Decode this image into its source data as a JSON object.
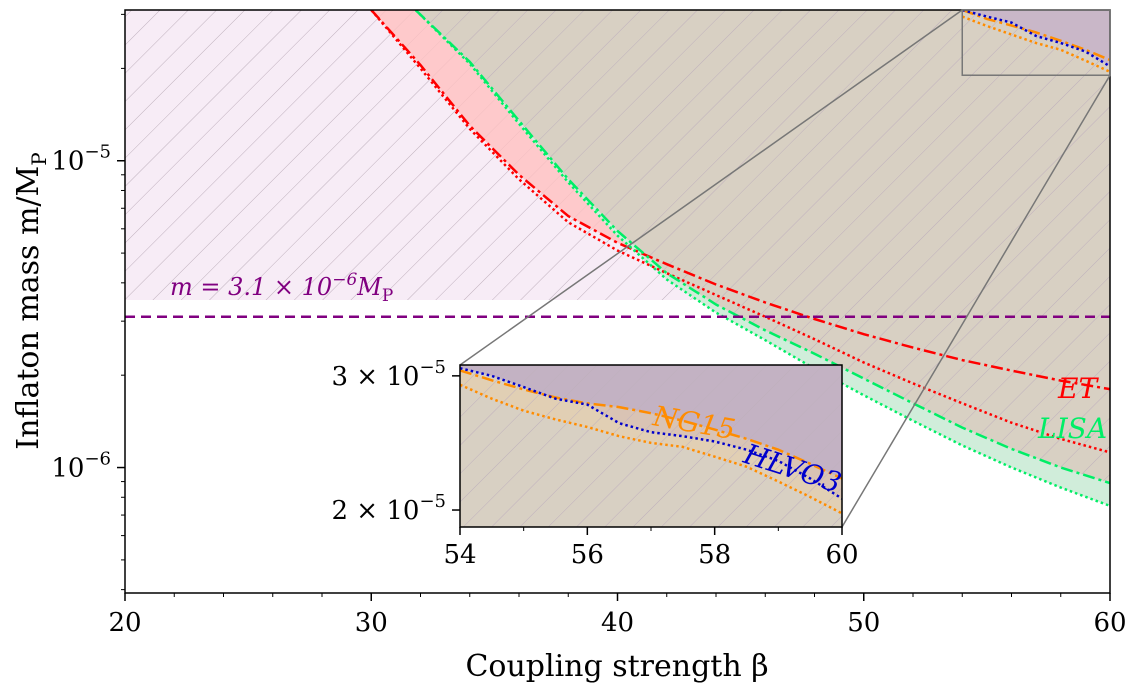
{
  "chart_data": {
    "type": "line",
    "main": {
      "xlabel": "Coupling strength  β",
      "ylabel": "Inflaton mass  m/M",
      "ylabel_sub": "P",
      "xlim": [
        20,
        60
      ],
      "ylim": [
        3.9e-07,
        3.1e-05
      ],
      "yscale": "log",
      "x_ticks": [
        20,
        30,
        40,
        50,
        60
      ],
      "x_tick_labels": [
        "20",
        "30",
        "40",
        "50",
        "60"
      ],
      "y_ticks": [
        1e-06,
        1e-05
      ],
      "y_tick_labels": [
        {
          "base": "10",
          "exp": "−6"
        },
        {
          "base": "10",
          "exp": "−5"
        }
      ],
      "hline": {
        "y": 3.1e-06,
        "label": "m = 3.1 × 10",
        "label_exp": "−6",
        "label_tail": "M",
        "label_sub": "P",
        "color": "#800080"
      },
      "series": [
        {
          "name": "ET",
          "color": "#ff0000",
          "style": "dashdot",
          "x": [
            30,
            32,
            34,
            36,
            38,
            40,
            42,
            44,
            46,
            48,
            50,
            52,
            54,
            56,
            58,
            60
          ],
          "y": [
            3.1e-05,
            2.05e-05,
            1.3e-05,
            9e-06,
            6.6e-06,
            5.4e-06,
            4.6e-06,
            3.95e-06,
            3.45e-06,
            3.05e-06,
            2.72e-06,
            2.46e-06,
            2.24e-06,
            2.07e-06,
            1.92e-06,
            1.8e-06
          ]
        },
        {
          "name": "",
          "color": "#ff0000",
          "style": "dotted",
          "x": [
            30,
            32,
            34,
            36,
            38,
            40,
            42,
            44,
            46,
            48,
            50,
            52,
            54,
            56,
            58,
            60
          ],
          "y": [
            3.1e-05,
            2e-05,
            1.27e-05,
            8.7e-06,
            6.3e-06,
            5.1e-06,
            4.3e-06,
            3.65e-06,
            3.1e-06,
            2.62e-06,
            2.2e-06,
            1.88e-06,
            1.62e-06,
            1.4e-06,
            1.24e-06,
            1.12e-06
          ]
        },
        {
          "name": "LISA",
          "color": "#00ee66",
          "style": "dashdot",
          "x": [
            31.8,
            34,
            36,
            38,
            40,
            42,
            44,
            46,
            48,
            50,
            52,
            54,
            56,
            58,
            60
          ],
          "y": [
            3.1e-05,
            2.1e-05,
            1.35e-05,
            8.7e-06,
            5.9e-06,
            4.3e-06,
            3.4e-06,
            2.8e-06,
            2.35e-06,
            1.95e-06,
            1.62e-06,
            1.35e-06,
            1.15e-06,
            1e-06,
            8.9e-07
          ]
        },
        {
          "name": "",
          "color": "#00ee66",
          "style": "dotted",
          "x": [
            31.8,
            34,
            36,
            38,
            40,
            42,
            44,
            46,
            48,
            50,
            52,
            54,
            56,
            58,
            60
          ],
          "y": [
            3.1e-05,
            2.07e-05,
            1.32e-05,
            8.5e-06,
            5.7e-06,
            4.1e-06,
            3.2e-06,
            2.6e-06,
            2.1e-06,
            1.72e-06,
            1.42e-06,
            1.18e-06,
            1e-06,
            8.6e-07,
            7.5e-07
          ]
        },
        {
          "name": "NG15",
          "color": "#ff8c00",
          "style": "dashdot",
          "x": [
            54,
            55,
            56,
            57,
            58,
            59,
            60
          ],
          "y": [
            3.1e-05,
            2.9e-05,
            2.76e-05,
            2.62e-05,
            2.46e-05,
            2.3e-05,
            2.13e-05
          ]
        },
        {
          "name": "",
          "color": "#ff8c00",
          "style": "dotted",
          "x": [
            54,
            55,
            56,
            57,
            58,
            59,
            60
          ],
          "y": [
            2.95e-05,
            2.75e-05,
            2.58e-05,
            2.42e-05,
            2.3e-05,
            2.12e-05,
            1.95e-05
          ]
        },
        {
          "name": "HLVO3",
          "color": "#0000cc",
          "style": "dotted",
          "x": [
            54,
            55,
            56,
            57,
            58,
            59,
            60
          ],
          "y": [
            3.1e-05,
            2.95e-05,
            2.82e-05,
            2.55e-05,
            2.42e-05,
            2.27e-05,
            2.03e-05
          ]
        }
      ]
    },
    "inset": {
      "xlim": [
        54,
        60
      ],
      "ylim": [
        1.9e-05,
        3.1e-05
      ],
      "yscale": "log",
      "x_ticks": [
        54,
        56,
        58,
        60
      ],
      "x_tick_labels": [
        "54",
        "56",
        "58",
        "60"
      ],
      "y_ticks": [
        2e-05,
        3e-05
      ],
      "y_tick_labels": [
        {
          "base": "2 × 10",
          "exp": "−5"
        },
        {
          "base": "3 × 10",
          "exp": "−5"
        }
      ],
      "series": [
        {
          "name": "NG15",
          "color": "#ff8c00",
          "style": "dashdot",
          "x": [
            54,
            54.5,
            55,
            55.5,
            56,
            56.5,
            57,
            57.5,
            58,
            58.5,
            59,
            59.5,
            60
          ],
          "y": [
            3.05e-05,
            2.96e-05,
            2.88e-05,
            2.81e-05,
            2.76e-05,
            2.73e-05,
            2.68e-05,
            2.62e-05,
            2.55e-05,
            2.48e-05,
            2.4e-05,
            2.3e-05,
            2.2e-05
          ]
        },
        {
          "name": "",
          "color": "#ff8c00",
          "style": "dotted",
          "x": [
            54,
            54.5,
            55,
            55.5,
            56,
            56.5,
            57,
            57.5,
            58,
            58.5,
            59,
            59.5,
            60
          ],
          "y": [
            2.92e-05,
            2.8e-05,
            2.7e-05,
            2.63e-05,
            2.57e-05,
            2.5e-05,
            2.45e-05,
            2.42e-05,
            2.35e-05,
            2.28e-05,
            2.18e-05,
            2.08e-05,
            1.98e-05
          ]
        },
        {
          "name": "HLVO3",
          "color": "#0000cc",
          "style": "dotted",
          "x": [
            54,
            54.5,
            55,
            55.5,
            56,
            56.5,
            57,
            57.5,
            58,
            58.5,
            59,
            59.5,
            60
          ],
          "y": [
            3.07e-05,
            3e-05,
            2.9e-05,
            2.8e-05,
            2.75e-05,
            2.6e-05,
            2.53e-05,
            2.5e-05,
            2.46e-05,
            2.4e-05,
            2.32e-05,
            2.2e-05,
            2.07e-05
          ]
        }
      ]
    },
    "zoom_box": {
      "x": [
        54,
        60
      ],
      "y": [
        1.9e-05,
        3.1e-05
      ]
    },
    "colors": {
      "excluded_pink": "#f4e0f0",
      "et_band": "#ffb6b6",
      "lisa_band": "#c2f0d8",
      "gray_region": "#d6cdbf",
      "top_region": "#c8b8c8",
      "hatch": "#c9b5c6"
    }
  }
}
